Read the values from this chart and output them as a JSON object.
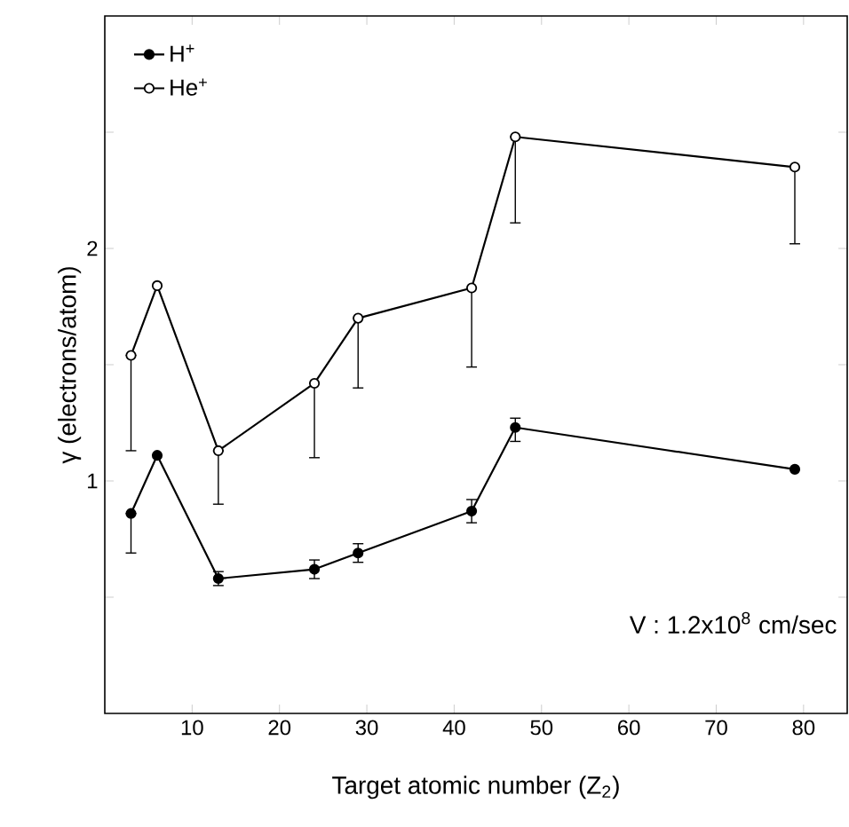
{
  "chart_data": {
    "type": "line",
    "xlabel": "Target atomic number (Z$_{2}$)",
    "ylabel": "γ (electrons/atom)",
    "x": [
      3,
      6,
      13,
      24,
      29,
      42,
      47,
      79
    ],
    "series": [
      {
        "name": "H$^{+}$",
        "color": "#000000",
        "values": [
          0.86,
          1.11,
          0.58,
          0.62,
          0.69,
          0.87,
          1.23,
          1.05
        ],
        "errors": [
          [
            0.69,
            0.86
          ],
          null,
          [
            0.55,
            0.61
          ],
          [
            0.58,
            0.66
          ],
          [
            0.65,
            0.73
          ],
          [
            0.82,
            0.92
          ],
          [
            1.17,
            1.27
          ],
          null
        ]
      },
      {
        "name": "He$^{+}$",
        "color": "#000000",
        "values": [
          1.54,
          1.84,
          1.13,
          1.42,
          1.7,
          1.83,
          2.48,
          2.35
        ],
        "errors": [
          [
            1.13,
            1.54
          ],
          null,
          [
            0.9,
            1.13
          ],
          [
            1.1,
            1.42
          ],
          [
            1.4,
            1.7
          ],
          [
            1.49,
            1.83
          ],
          [
            2.11,
            2.48
          ],
          [
            2.02,
            2.35
          ]
        ]
      }
    ],
    "xlim": [
      0,
      85
    ],
    "xticks": [
      10,
      20,
      30,
      40,
      50,
      60,
      70,
      80
    ],
    "ylim": [
      0,
      3
    ],
    "yticks": [
      {
        "value": 0.5,
        "label": null
      },
      1,
      {
        "value": 1.5,
        "label": null
      },
      2,
      {
        "value": 2.5,
        "label": null
      }
    ],
    "annotations": [
      "V : 1.2x10$^{8}$ cm/sec"
    ],
    "legend": "top left",
    "marker": "circle",
    "line_style": "solid",
    "grid": false
  }
}
